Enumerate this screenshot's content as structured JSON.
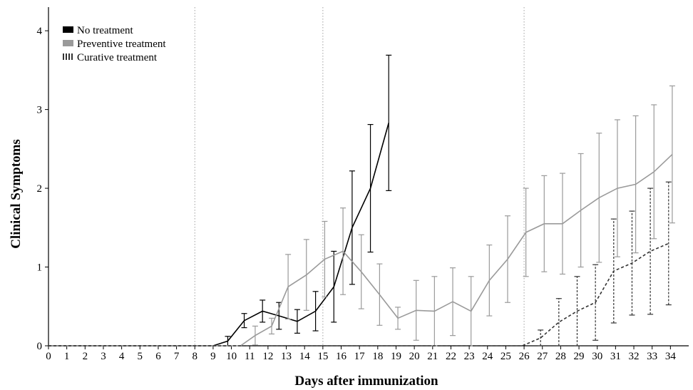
{
  "chart_data": {
    "type": "line",
    "title": "",
    "xlabel": "Days after immunization",
    "ylabel": "Clinical Symptoms",
    "xlim": [
      0,
      35
    ],
    "ylim": [
      0,
      4.3
    ],
    "xticks": [
      0,
      1,
      2,
      3,
      4,
      5,
      6,
      7,
      8,
      9,
      10,
      11,
      12,
      13,
      14,
      15,
      16,
      17,
      18,
      19,
      20,
      21,
      22,
      23,
      24,
      25,
      26,
      27,
      28,
      29,
      30,
      31,
      32,
      33,
      34
    ],
    "yticks": [
      0,
      1,
      2,
      3,
      4
    ],
    "grid": false,
    "legend_position": "top-left",
    "vertical_markers": [
      8,
      15,
      26
    ],
    "series": [
      {
        "name": "No treatment",
        "color": "#000000",
        "dash": "solid",
        "x": [
          0,
          1,
          2,
          3,
          4,
          5,
          6,
          7,
          8,
          9,
          9.8,
          10.7,
          11.7,
          12.6,
          13.6,
          14.6,
          15.6,
          16.6,
          17.6,
          18.6
        ],
        "y": [
          0,
          0,
          0,
          0,
          0,
          0,
          0,
          0,
          0,
          0,
          0.06,
          0.32,
          0.44,
          0.38,
          0.31,
          0.44,
          0.75,
          1.5,
          2.0,
          2.83
        ],
        "err": [
          0,
          0,
          0,
          0,
          0,
          0,
          0,
          0,
          0,
          0,
          0.06,
          0.09,
          0.14,
          0.17,
          0.15,
          0.25,
          0.45,
          0.72,
          0.81,
          0.86
        ]
      },
      {
        "name": "Preventive treatment",
        "color": "#9a9a9a",
        "dash": "solid",
        "x": [
          0,
          1,
          2,
          3,
          4,
          5,
          6,
          7,
          8,
          9,
          10,
          10.5,
          11.3,
          12.2,
          13.1,
          14.1,
          15.1,
          16.1,
          17.1,
          18.1,
          19.1,
          20.1,
          21.1,
          22.1,
          23.1,
          24.1,
          25.1,
          26.1,
          27.1,
          28.1,
          29.1,
          30.1,
          31.1,
          32.1,
          33.1,
          34.1
        ],
        "y": [
          0,
          0,
          0,
          0,
          0,
          0,
          0,
          0,
          0,
          0,
          0,
          0,
          0.13,
          0.25,
          0.75,
          0.9,
          1.1,
          1.2,
          0.94,
          0.65,
          0.35,
          0.45,
          0.44,
          0.56,
          0.44,
          0.83,
          1.1,
          1.44,
          1.55,
          1.55,
          1.72,
          1.88,
          2.0,
          2.05,
          2.21,
          2.43
        ],
        "err": [
          0,
          0,
          0,
          0,
          0,
          0,
          0,
          0,
          0,
          0,
          0,
          0,
          0.12,
          0.1,
          0.41,
          0.45,
          0.48,
          0.55,
          0.47,
          0.39,
          0.14,
          0.38,
          0.44,
          0.43,
          0.44,
          0.45,
          0.55,
          0.56,
          0.61,
          0.64,
          0.72,
          0.82,
          0.87,
          0.87,
          0.85,
          0.87
        ]
      },
      {
        "name": "Curative treatment",
        "color": "#333333",
        "dash": "dashed",
        "x": [
          0,
          1,
          2,
          3,
          4,
          5,
          6,
          7,
          8,
          9,
          10,
          11,
          12,
          13,
          14,
          15,
          16,
          17,
          18,
          19,
          20,
          21,
          22,
          23,
          24,
          25,
          25.9,
          26.9,
          27.9,
          28.9,
          29.9,
          30.9,
          31.9,
          32.9,
          33.9
        ],
        "y": [
          0,
          0,
          0,
          0,
          0,
          0,
          0,
          0,
          0,
          0,
          0,
          0,
          0,
          0,
          0,
          0,
          0,
          0,
          0,
          0,
          0,
          0,
          0,
          0,
          0,
          0,
          0,
          0.1,
          0.3,
          0.44,
          0.55,
          0.95,
          1.05,
          1.2,
          1.3
        ],
        "err": [
          0,
          0,
          0,
          0,
          0,
          0,
          0,
          0,
          0,
          0,
          0,
          0,
          0,
          0,
          0,
          0,
          0,
          0,
          0,
          0,
          0,
          0,
          0,
          0,
          0,
          0,
          0,
          0.1,
          0.3,
          0.44,
          0.48,
          0.66,
          0.66,
          0.8,
          0.78
        ]
      }
    ]
  }
}
